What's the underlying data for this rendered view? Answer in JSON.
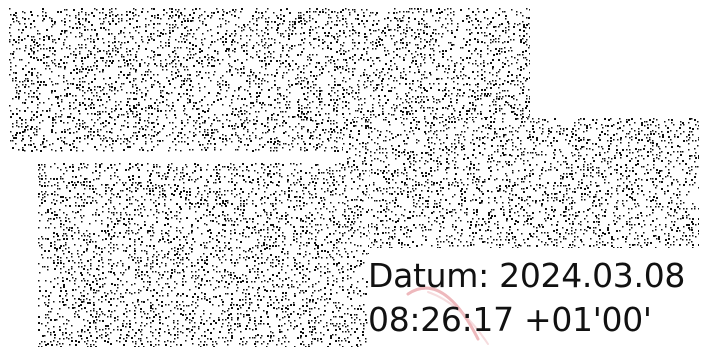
{
  "signature": {
    "date_line": "Datum: 2024.03.08",
    "time_line": "08:26:17 +01'00'"
  },
  "colors": {
    "noise_ink": "#111111",
    "background": "#ffffff",
    "watermark_accent": "#e8a0a6"
  }
}
